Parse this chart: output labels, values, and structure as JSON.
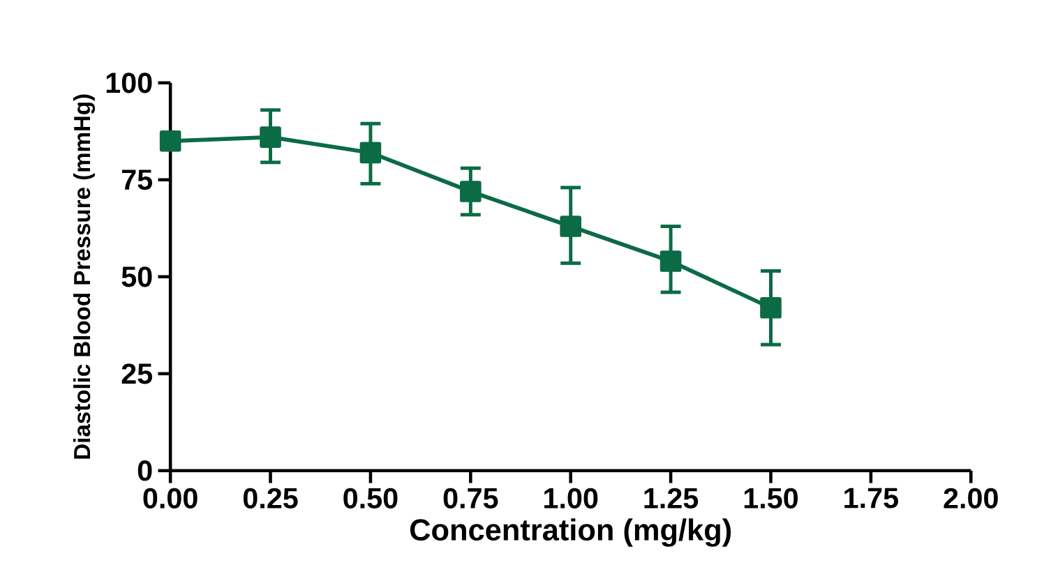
{
  "chart_data": {
    "type": "line",
    "xlabel": "Concentration (mg/kg)",
    "ylabel": "Diastolic Blood Pressure (mmHg)",
    "x": [
      0,
      0.25,
      0.5,
      0.75,
      1.0,
      1.25,
      1.5
    ],
    "values": [
      85,
      86,
      82,
      72,
      63,
      54,
      42
    ],
    "errors": [
      null,
      [
        79.5,
        93
      ],
      [
        74,
        89.5
      ],
      [
        66,
        78
      ],
      [
        53.5,
        73
      ],
      [
        46,
        63
      ],
      [
        32.5,
        51.5
      ]
    ],
    "color": "#0b6b45",
    "marker": "square",
    "line_style": "solid",
    "xlim": [
      0,
      2
    ],
    "ylim": [
      0,
      100
    ],
    "xticks": [
      {
        "value": 0,
        "label": "0.00"
      },
      {
        "value": 0.25,
        "label": "0.25"
      },
      {
        "value": 0.5,
        "label": "0.50"
      },
      {
        "value": 0.75,
        "label": "0.75"
      },
      {
        "value": 1.0,
        "label": "1.00"
      },
      {
        "value": 1.25,
        "label": "1.25"
      },
      {
        "value": 1.5,
        "label": "1.50"
      },
      {
        "value": 1.75,
        "label": "1.75"
      },
      {
        "value": 2.0,
        "label": "2.00"
      }
    ],
    "yticks": [
      0,
      25,
      50,
      75,
      100
    ]
  }
}
